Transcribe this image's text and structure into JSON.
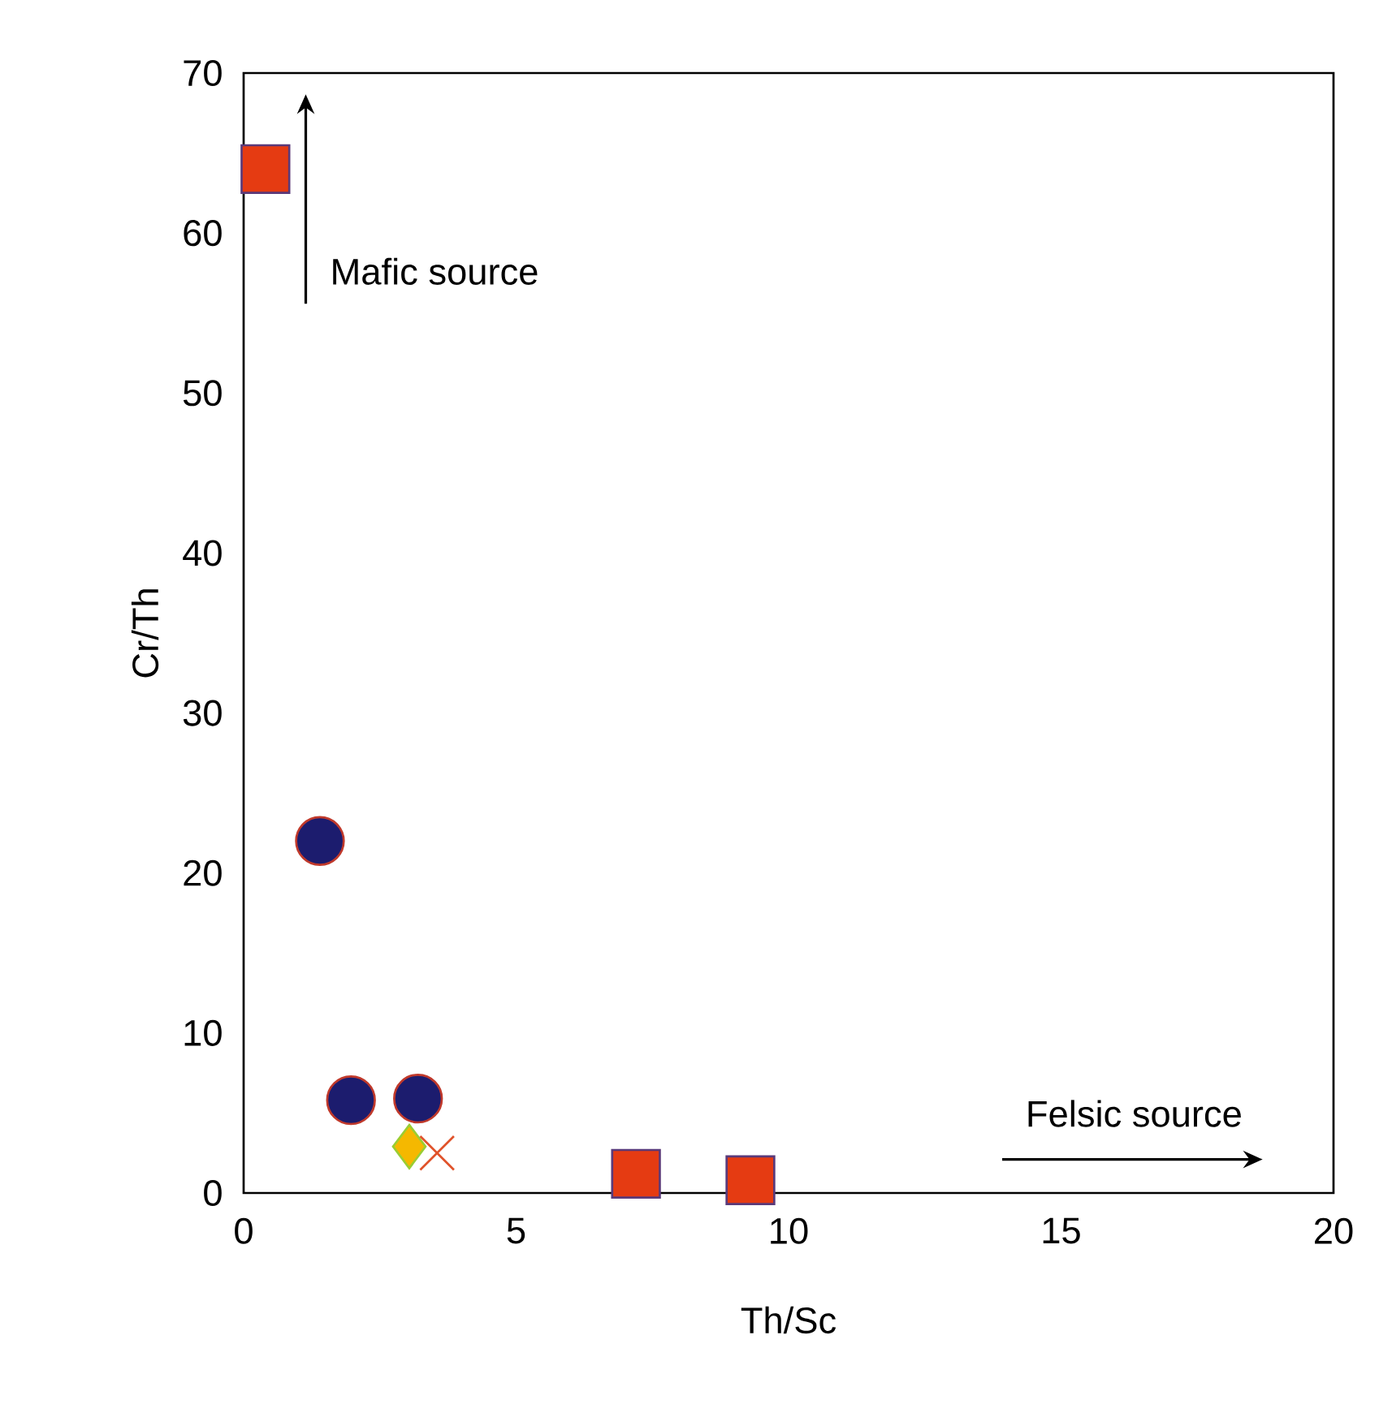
{
  "chart_data": {
    "type": "scatter",
    "xlabel": "Th/Sc",
    "ylabel": "Cr/Th",
    "xlim": [
      0,
      20
    ],
    "ylim": [
      0,
      70
    ],
    "xticks": [
      0,
      5,
      10,
      15,
      20
    ],
    "yticks": [
      0,
      10,
      20,
      30,
      40,
      50,
      60,
      70
    ],
    "grid": false,
    "annotations": [
      "Mafic source",
      "Felsic source"
    ],
    "series": [
      {
        "color": "#e53b12",
        "marker": "square",
        "x": [
          0.4,
          7.2,
          9.3
        ],
        "values": [
          64,
          1.2,
          0.8
        ]
      },
      {
        "color": "#1c1c6e",
        "marker": "circle",
        "x": [
          1.4,
          1.97,
          3.2
        ],
        "values": [
          22,
          5.8,
          5.9
        ]
      },
      {
        "color": "#f5b800",
        "marker": "diamond",
        "x": [
          3.04
        ],
        "values": [
          2.9
        ]
      },
      {
        "color": "#e0522a",
        "marker": "cross",
        "x": [
          3.55
        ],
        "values": [
          2.5
        ]
      }
    ]
  }
}
